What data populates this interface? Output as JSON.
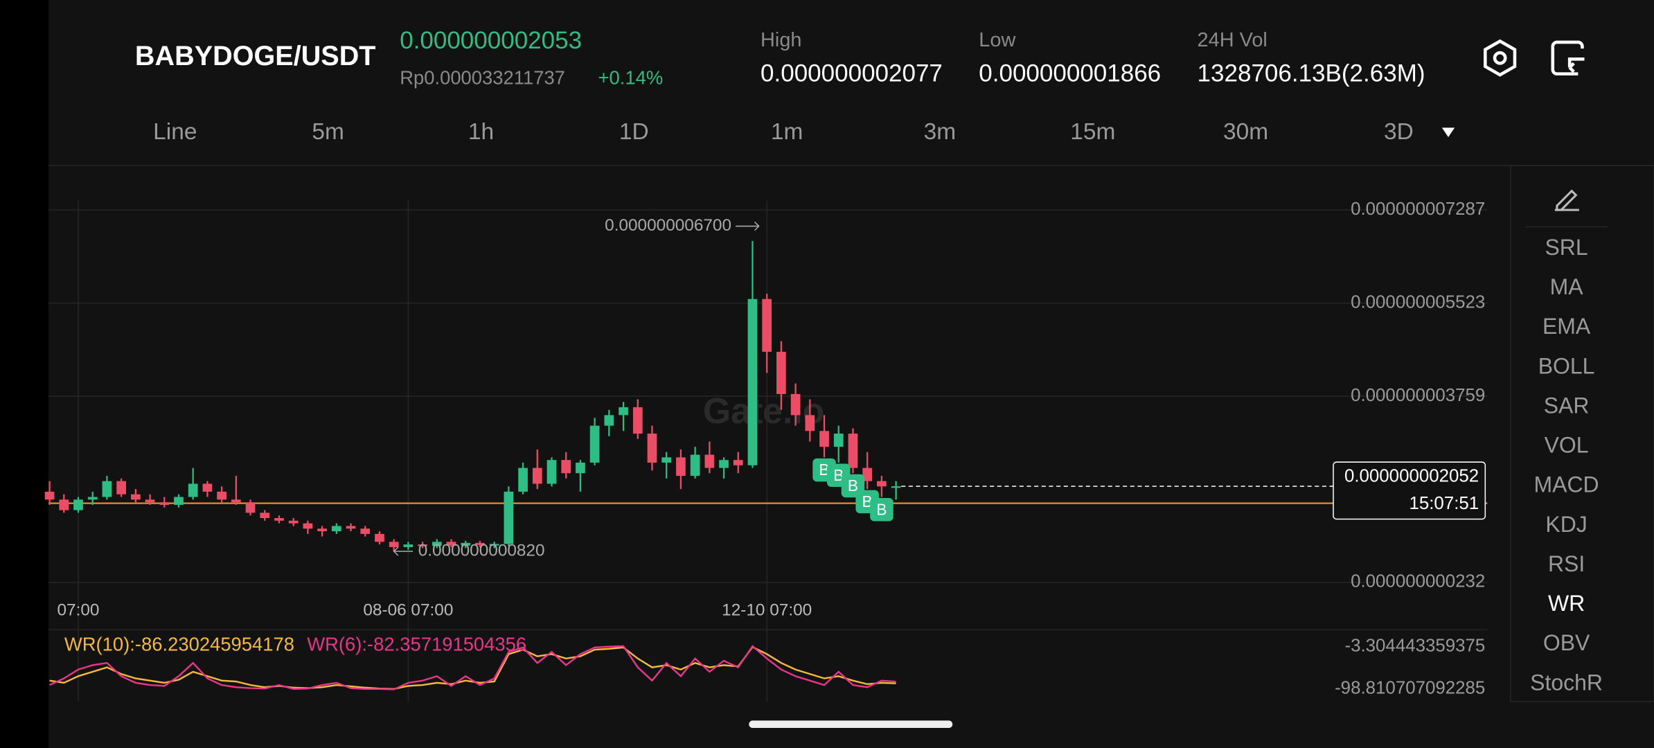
{
  "header": {
    "pair": "BABYDOGE/USDT",
    "price": "0.000000002053",
    "local_price": "Rp0.000033211737",
    "change": "+0.14%",
    "stats": [
      {
        "label": "High",
        "value": "0.000000002077"
      },
      {
        "label": "Low",
        "value": "0.000000001866"
      },
      {
        "label": "24H Vol",
        "value": "1328706.13B(2.63M)"
      }
    ]
  },
  "tabs": [
    "Line",
    "5m",
    "1h",
    "1D",
    "1m",
    "3m",
    "15m",
    "30m",
    "3D"
  ],
  "indicators": [
    "SRL",
    "MA",
    "EMA",
    "BOLL",
    "SAR",
    "VOL",
    "MACD",
    "KDJ",
    "RSI",
    "WR",
    "OBV",
    "StochR"
  ],
  "active_indicator": "WR",
  "chart_data": [
    {
      "type": "candlestick",
      "categories": [
        null,
        null,
        "07:00",
        null,
        null,
        null,
        null,
        null,
        null,
        null,
        null,
        null,
        null,
        null,
        null,
        null,
        null,
        null,
        null,
        null,
        null,
        null,
        null,
        null,
        null,
        "08-06 07:00",
        null,
        null,
        null,
        null,
        null,
        null,
        null,
        null,
        null,
        null,
        null,
        null,
        null,
        null,
        null,
        null,
        null,
        null,
        null,
        null,
        null,
        null,
        null,
        null,
        "12-10 07:00",
        null,
        null,
        null,
        null,
        null,
        null,
        null,
        null,
        null
      ],
      "open": [
        1.95e-09,
        1.8e-09,
        1.6e-09,
        1.8e-09,
        1.85e-09,
        2.15e-09,
        1.9e-09,
        1.8e-09,
        1.75e-09,
        1.7e-09,
        1.85e-09,
        2.1e-09,
        1.95e-09,
        1.8e-09,
        1.75e-09,
        1.55e-09,
        1.45e-09,
        1.4e-09,
        1.35e-09,
        1.25e-09,
        1.2e-09,
        1.3e-09,
        1.25e-09,
        1.15e-09,
        1e-09,
        9e-10,
        9.5e-10,
        9.2e-10,
        1e-09,
        9.3e-10,
        9.8e-10,
        9.4e-10,
        9.6e-10,
        1.95e-09,
        2.4e-09,
        2.1e-09,
        2.55e-09,
        2.3e-09,
        2.5e-09,
        3.2e-09,
        3.4e-09,
        3.55e-09,
        3.05e-09,
        2.5e-09,
        2.6e-09,
        2.25e-09,
        2.65e-09,
        2.4e-09,
        2.55e-09,
        2.45e-09,
        5.6e-09,
        4.6e-09,
        3.8e-09,
        3.4e-09,
        3.1e-09,
        2.8e-09,
        3.05e-09,
        2.4e-09,
        2.15e-09,
        2.05e-09
      ],
      "high": [
        2.15e-09,
        1.9e-09,
        1.85e-09,
        1.95e-09,
        2.25e-09,
        2.2e-09,
        2e-09,
        1.9e-09,
        1.85e-09,
        1.9e-09,
        2.4e-09,
        2.15e-09,
        2.05e-09,
        2.25e-09,
        1.8e-09,
        1.6e-09,
        1.5e-09,
        1.45e-09,
        1.4e-09,
        1.3e-09,
        1.35e-09,
        1.35e-09,
        1.3e-09,
        1.2e-09,
        1.05e-09,
        1e-09,
        1e-09,
        1.05e-09,
        1.05e-09,
        1.02e-09,
        1.02e-09,
        1e-09,
        2.05e-09,
        2.5e-09,
        2.75e-09,
        2.6e-09,
        2.7e-09,
        2.55e-09,
        3.35e-09,
        3.5e-09,
        3.65e-09,
        3.7e-09,
        3.2e-09,
        2.7e-09,
        2.75e-09,
        2.8e-09,
        2.9e-09,
        2.6e-09,
        2.7e-09,
        6.7e-09,
        5.7e-09,
        4.8e-09,
        4e-09,
        3.7e-09,
        3.4e-09,
        3.2e-09,
        3.15e-09,
        2.7e-09,
        2.25e-09,
        2.15e-09
      ],
      "low": [
        1.7e-09,
        1.55e-09,
        1.55e-09,
        1.7e-09,
        1.8e-09,
        1.85e-09,
        1.75e-09,
        1.7e-09,
        1.65e-09,
        1.65e-09,
        1.8e-09,
        1.85e-09,
        1.75e-09,
        1.7e-09,
        1.5e-09,
        1.4e-09,
        1.35e-09,
        1.3e-09,
        1.15e-09,
        1.1e-09,
        1.15e-09,
        1.2e-09,
        1.1e-09,
        9.5e-10,
        8.2e-10,
        8.5e-10,
        8.8e-10,
        8.8e-10,
        9e-10,
        8.8e-10,
        9e-10,
        8.8e-10,
        9.2e-10,
        1.9e-09,
        2e-09,
        2.05e-09,
        2.2e-09,
        1.95e-09,
        2.45e-09,
        3e-09,
        3.1e-09,
        2.95e-09,
        2.35e-09,
        2.2e-09,
        2e-09,
        2.2e-09,
        2.3e-09,
        2.2e-09,
        2.3e-09,
        2.4e-09,
        4.2e-09,
        3.5e-09,
        3.2e-09,
        2.9e-09,
        2.6e-09,
        2.5e-09,
        2.3e-09,
        2e-09,
        1.85e-09,
        1.8e-09
      ],
      "close": [
        1.8e-09,
        1.6e-09,
        1.8e-09,
        1.85e-09,
        2.15e-09,
        1.9e-09,
        1.8e-09,
        1.75e-09,
        1.7e-09,
        1.85e-09,
        2.1e-09,
        1.95e-09,
        1.8e-09,
        1.75e-09,
        1.55e-09,
        1.45e-09,
        1.4e-09,
        1.35e-09,
        1.25e-09,
        1.2e-09,
        1.3e-09,
        1.25e-09,
        1.15e-09,
        1e-09,
        9e-10,
        9.5e-10,
        9.2e-10,
        1e-09,
        9.3e-10,
        9.8e-10,
        9.4e-10,
        9.6e-10,
        1.95e-09,
        2.4e-09,
        2.1e-09,
        2.55e-09,
        2.3e-09,
        2.5e-09,
        3.2e-09,
        3.4e-09,
        3.55e-09,
        3.05e-09,
        2.5e-09,
        2.6e-09,
        2.25e-09,
        2.65e-09,
        2.4e-09,
        2.55e-09,
        2.45e-09,
        5.6e-09,
        4.6e-09,
        3.8e-09,
        3.4e-09,
        3.1e-09,
        2.8e-09,
        3.05e-09,
        2.4e-09,
        2.15e-09,
        2.05e-09,
        2.052e-09
      ],
      "up_color": "#2ebd85",
      "down_color": "#eb4d67",
      "ylim": [
        3.2e-11,
        7.467e-09
      ],
      "yticks": [
        {
          "value": 7.287e-09,
          "label": "0.000000007287"
        },
        {
          "value": 5.523e-09,
          "label": "0.000000005523"
        },
        {
          "value": 3.759e-09,
          "label": "0.000000003759"
        },
        {
          "value": 2.32e-10,
          "label": "0.000000000232"
        }
      ],
      "grid": true,
      "last": {
        "value": 2.052e-09,
        "label": "0.000000002052"
      },
      "countdown": "15:07:51",
      "hline": {
        "value": 1.73e-09,
        "color": "#f08a24"
      },
      "max_marker": {
        "value": 6.7e-09,
        "label": "0.000000006700"
      },
      "min_marker": {
        "value": 8.2e-10,
        "label": "0.000000000820"
      },
      "trade_markers": [
        {
          "candle": 54,
          "label": "B"
        },
        {
          "candle": 55,
          "label": "B"
        },
        {
          "candle": 56,
          "label": "B"
        },
        {
          "candle": 57,
          "label": "B"
        },
        {
          "candle": 58,
          "label": "B"
        }
      ],
      "watermark": "Gate.io"
    },
    {
      "type": "line",
      "series": [
        {
          "name": "WR(10):-86.230245954178",
          "color": "#f5b93a",
          "values": [
            -80,
            -85,
            -70,
            -60,
            -50,
            -65,
            -75,
            -80,
            -85,
            -78,
            -60,
            -70,
            -80,
            -82,
            -90,
            -95,
            -92,
            -96,
            -97,
            -95,
            -90,
            -93,
            -96,
            -98,
            -99,
            -92,
            -90,
            -85,
            -88,
            -80,
            -85,
            -82,
            -20,
            -10,
            -25,
            -20,
            -30,
            -25,
            -10,
            -8,
            -5,
            -30,
            -50,
            -45,
            -55,
            -40,
            -50,
            -45,
            -48,
            -4,
            -20,
            -40,
            -55,
            -65,
            -75,
            -70,
            -80,
            -88,
            -85,
            -86.230245954178
          ]
        },
        {
          "name": "WR(6):-82.357191504356",
          "color": "#e8348a",
          "values": [
            -90,
            -75,
            -55,
            -45,
            -40,
            -70,
            -85,
            -90,
            -92,
            -70,
            -40,
            -75,
            -90,
            -95,
            -97,
            -98,
            -90,
            -99,
            -98,
            -90,
            -85,
            -97,
            -99,
            -99,
            -100,
            -85,
            -80,
            -70,
            -92,
            -70,
            -90,
            -75,
            -15,
            -5,
            -40,
            -15,
            -45,
            -20,
            -5,
            -3,
            -2,
            -50,
            -80,
            -40,
            -70,
            -30,
            -60,
            -35,
            -50,
            -2,
            -30,
            -55,
            -70,
            -80,
            -90,
            -60,
            -90,
            -95,
            -80,
            -82.357191504356
          ]
        }
      ],
      "ylim": [
        -98.810707092285,
        -3.304443359375
      ],
      "yticks": [
        -3.304443359375,
        -98.810707092285
      ]
    }
  ]
}
